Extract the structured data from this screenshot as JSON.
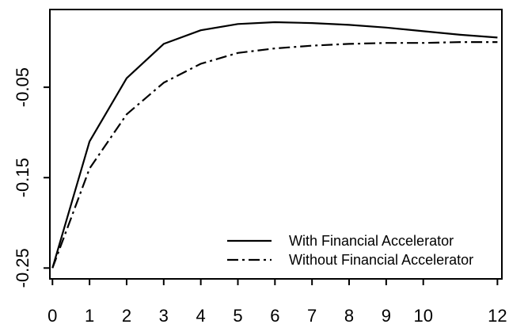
{
  "chart_data": {
    "type": "line",
    "title": "",
    "xlabel": "",
    "ylabel": "",
    "xlim": [
      0,
      12
    ],
    "ylim": [
      -0.25,
      0.03
    ],
    "x_ticks": [
      0,
      1,
      2,
      3,
      4,
      5,
      6,
      7,
      8,
      9,
      10,
      12
    ],
    "x_tick_labels": [
      "0",
      "1",
      "2",
      "3",
      "4",
      "5",
      "6",
      "7",
      "8",
      "9",
      "10",
      "12"
    ],
    "y_ticks": [
      -0.25,
      -0.15,
      -0.05
    ],
    "y_tick_labels": [
      "-0.25",
      "-0.15",
      "-0.05"
    ],
    "grid": false,
    "legend_position": "bottom-right",
    "series": [
      {
        "name": "With Financial Accelerator",
        "line_style": "solid",
        "color": "#000000",
        "x": [
          0,
          1,
          2,
          3,
          4,
          5,
          6,
          7,
          8,
          9,
          10,
          11,
          12
        ],
        "y": [
          -0.25,
          -0.11,
          -0.04,
          -0.002,
          0.013,
          0.02,
          0.022,
          0.021,
          0.019,
          0.016,
          0.012,
          0.008,
          0.005
        ]
      },
      {
        "name": "Without Financial Accelerator",
        "line_style": "dash-dot",
        "color": "#000000",
        "x": [
          0,
          1,
          2,
          3,
          4,
          5,
          6,
          7,
          8,
          9,
          10,
          11,
          12
        ],
        "y": [
          -0.25,
          -0.14,
          -0.08,
          -0.045,
          -0.024,
          -0.012,
          -0.007,
          -0.004,
          -0.002,
          -0.001,
          -0.001,
          0,
          0
        ]
      }
    ]
  }
}
